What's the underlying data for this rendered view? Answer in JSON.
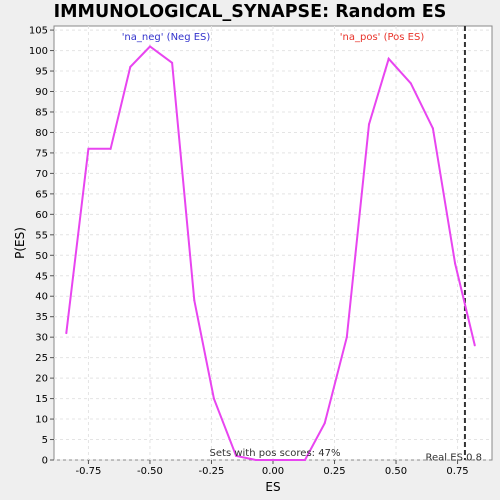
{
  "chart_data": {
    "type": "line",
    "title": "IMMUNOLOGICAL_SYNAPSE: Random ES distribution",
    "xlabel": "ES",
    "ylabel": "P(ES)",
    "xlim": [
      -0.89,
      0.89
    ],
    "ylim": [
      0,
      106
    ],
    "x_ticks": [
      -0.75,
      -0.5,
      -0.25,
      0.0,
      0.25,
      0.5,
      0.75
    ],
    "x_tick_labels": [
      "-0.75",
      "-0.50",
      "-0.25",
      "0.00",
      "0.25",
      "0.50",
      "0.75"
    ],
    "y_ticks": [
      0,
      5,
      10,
      15,
      20,
      25,
      30,
      35,
      40,
      45,
      50,
      55,
      60,
      65,
      70,
      75,
      80,
      85,
      90,
      95,
      100,
      105
    ],
    "grid": true,
    "line_color": "#e845f0",
    "series": [
      {
        "x": [
          -0.84,
          -0.75,
          -0.66,
          -0.58,
          -0.5,
          -0.41,
          -0.32,
          -0.24,
          -0.15,
          -0.07,
          0.04,
          0.13,
          0.21,
          0.3,
          0.39,
          0.47,
          0.56,
          0.65,
          0.74,
          0.82
        ],
        "y": [
          31,
          76,
          76,
          96,
          101,
          97,
          39,
          15,
          1,
          0,
          0,
          0,
          9,
          30,
          82,
          98,
          92,
          81,
          48,
          28
        ]
      }
    ],
    "real_es": 0.78,
    "annotations": {
      "neg": {
        "text": "'na_neg' (Neg ES)",
        "color": "#3333cc"
      },
      "pos": {
        "text": "'na_pos' (Pos ES)",
        "color": "#e8332a"
      },
      "sets": {
        "text": "Sets with pos scores: 47%",
        "color": "#333333"
      },
      "real": {
        "text": "Real ES 0.8",
        "color": "#333333"
      }
    }
  }
}
